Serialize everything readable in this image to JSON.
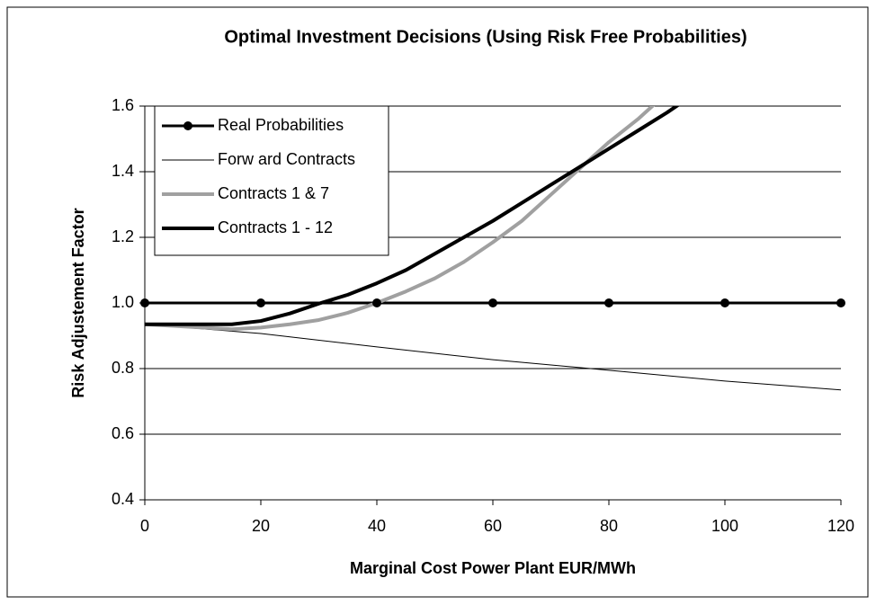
{
  "chart_data": {
    "type": "line",
    "title": "Optimal Investment Decisions (Using Risk Free Probabilities)",
    "x_label": "Marginal Cost Power Plant EUR/MWh",
    "y_label": "Risk Adjustement Factor",
    "xlim": [
      0,
      120
    ],
    "xticks": [
      0,
      20,
      40,
      60,
      80,
      100,
      120
    ],
    "ylim": [
      0.4,
      1.6
    ],
    "yticks": [
      0.4,
      0.6,
      0.8,
      {
        "value": 1,
        "label": "1.0"
      },
      1.2,
      1.4,
      1.6
    ],
    "grid": true,
    "legend": "top-left",
    "series": [
      {
        "name": "Real Probabilities",
        "color": "#000000",
        "width": 3,
        "markers": true,
        "x": [
          0,
          20,
          40,
          60,
          80,
          100,
          120
        ],
        "values": [
          1,
          1,
          1,
          1,
          1,
          1,
          1
        ]
      },
      {
        "name": "Forw ard Contracts",
        "color": "#000000",
        "width": 1,
        "markers": false,
        "x": [
          0,
          20,
          40,
          60,
          80,
          100,
          120
        ],
        "values": [
          0.935,
          0.907,
          0.866,
          0.827,
          0.795,
          0.762,
          0.735
        ]
      },
      {
        "name": "Contracts 1 & 7",
        "color": "#a0a0a0",
        "width": 4,
        "markers": false,
        "x": [
          0,
          10,
          15,
          20,
          25,
          30,
          35,
          40,
          45,
          50,
          55,
          60,
          65,
          70,
          75,
          80,
          85,
          90
        ],
        "values": [
          0.935,
          0.925,
          0.92,
          0.925,
          0.935,
          0.948,
          0.97,
          1.0,
          1.035,
          1.075,
          1.125,
          1.185,
          1.25,
          1.33,
          1.41,
          1.49,
          1.56,
          1.64
        ]
      },
      {
        "name": "Contracts 1 - 12",
        "color": "#000000",
        "width": 4,
        "markers": false,
        "x": [
          0,
          5,
          10,
          15,
          20,
          25,
          30,
          35,
          40,
          45,
          50,
          55,
          60,
          65,
          70,
          75,
          80,
          85,
          90,
          95
        ],
        "values": [
          0.935,
          0.935,
          0.935,
          0.935,
          0.945,
          0.968,
          0.998,
          1.025,
          1.06,
          1.1,
          1.15,
          1.2,
          1.25,
          1.305,
          1.36,
          1.415,
          1.47,
          1.525,
          1.58,
          1.64
        ]
      }
    ]
  }
}
